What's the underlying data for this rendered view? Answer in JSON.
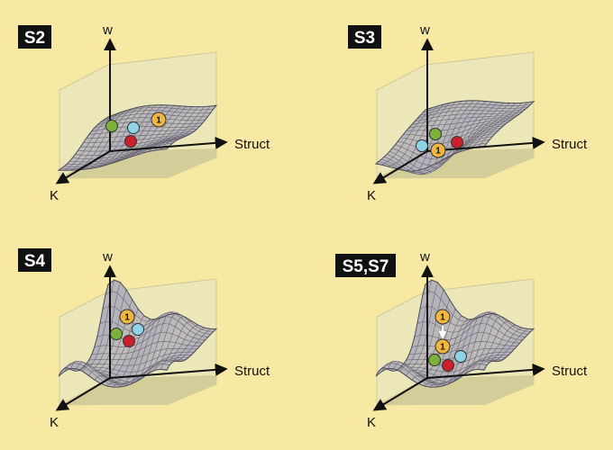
{
  "colors": {
    "background": "#f7e9a3",
    "wall": "#ece7b9",
    "floor": "#d3cd9a",
    "surface": "#b3b1b9",
    "mesh": "#6f6c78",
    "label_bg": "#111111",
    "ball_green": "#7bb33a",
    "ball_blue": "#8fd3e6",
    "ball_red": "#cc1f2c",
    "ball_orange": "#f0b73f"
  },
  "axes": {
    "vertical": "w",
    "horizontal": "Struct",
    "depth": "K"
  },
  "panels": [
    {
      "label": "S2"
    },
    {
      "label": "S3"
    },
    {
      "label": "S4"
    },
    {
      "label": "S5,S7"
    }
  ],
  "ball_number": "1"
}
